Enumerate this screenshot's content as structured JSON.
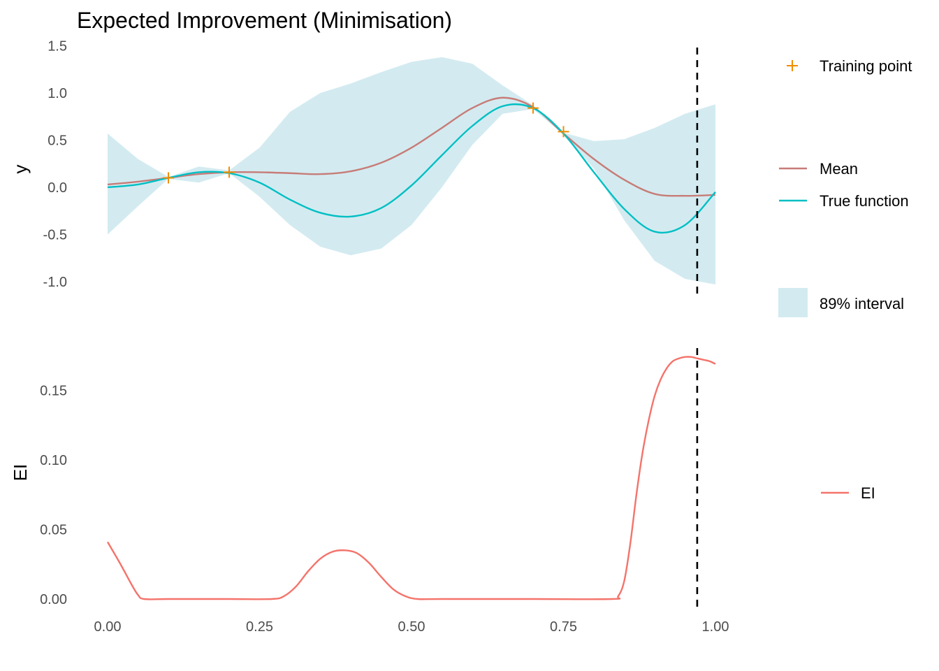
{
  "title": "Expected Improvement (Minimisation)",
  "colors": {
    "mean": "#c77c78",
    "true_function": "#00bfc4",
    "interval": "#d3ebf0",
    "training": "#f08c00",
    "ei": "#f4736b",
    "vline": "#000000",
    "tick_text": "#4d4d4d"
  },
  "legend": {
    "training": "Training point",
    "mean": "Mean",
    "true_function": "True function",
    "interval": "89% interval",
    "ei": "EI"
  },
  "chart_data": [
    {
      "type": "line",
      "panel": "top",
      "ylabel": "y",
      "xlabel": "",
      "xlim": [
        0,
        1
      ],
      "ylim": [
        -1.1,
        1.5
      ],
      "grid": false,
      "legend_position": "right",
      "x_ticks": [
        "0.00",
        "0.25",
        "0.50",
        "0.75",
        "1.00"
      ],
      "y_ticks": [
        "-1.0",
        "-0.5",
        "0.0",
        "0.5",
        "1.0",
        "1.5"
      ],
      "x_tick_values": [
        0,
        0.25,
        0.5,
        0.75,
        1.0
      ],
      "y_tick_values": [
        -1.0,
        -0.5,
        0.0,
        0.5,
        1.0,
        1.5
      ],
      "vline_x": 0.97,
      "series": [
        {
          "name": "Mean",
          "x": [
            0,
            0.05,
            0.1,
            0.15,
            0.2,
            0.25,
            0.3,
            0.35,
            0.4,
            0.45,
            0.5,
            0.55,
            0.6,
            0.65,
            0.7,
            0.75,
            0.8,
            0.85,
            0.9,
            0.95,
            1.0
          ],
          "y": [
            0.03,
            0.06,
            0.1,
            0.14,
            0.16,
            0.16,
            0.15,
            0.14,
            0.17,
            0.26,
            0.42,
            0.63,
            0.84,
            0.95,
            0.85,
            0.57,
            0.3,
            0.08,
            -0.07,
            -0.09,
            -0.08
          ]
        },
        {
          "name": "True function",
          "x": [
            0,
            0.05,
            0.1,
            0.15,
            0.2,
            0.25,
            0.3,
            0.35,
            0.4,
            0.45,
            0.5,
            0.55,
            0.6,
            0.65,
            0.7,
            0.75,
            0.8,
            0.85,
            0.9,
            0.95,
            1.0
          ],
          "y": [
            0.0,
            0.03,
            0.1,
            0.16,
            0.15,
            0.05,
            -0.13,
            -0.27,
            -0.31,
            -0.22,
            0.02,
            0.34,
            0.65,
            0.86,
            0.84,
            0.57,
            0.16,
            -0.23,
            -0.47,
            -0.4,
            -0.05
          ]
        }
      ],
      "interval": {
        "name": "89% interval",
        "x": [
          0,
          0.05,
          0.1,
          0.15,
          0.2,
          0.25,
          0.3,
          0.35,
          0.4,
          0.45,
          0.5,
          0.55,
          0.6,
          0.65,
          0.7,
          0.75,
          0.8,
          0.85,
          0.9,
          0.95,
          1.0
        ],
        "lower": [
          -0.5,
          -0.2,
          0.09,
          0.05,
          0.15,
          -0.1,
          -0.4,
          -0.63,
          -0.72,
          -0.65,
          -0.4,
          0.0,
          0.45,
          0.78,
          0.83,
          0.56,
          0.2,
          -0.35,
          -0.78,
          -0.97,
          -1.03
        ],
        "upper": [
          0.57,
          0.3,
          0.11,
          0.22,
          0.18,
          0.42,
          0.8,
          1.0,
          1.1,
          1.22,
          1.33,
          1.38,
          1.31,
          1.08,
          0.87,
          0.58,
          0.49,
          0.51,
          0.63,
          0.78,
          0.88
        ]
      },
      "training_points": {
        "name": "Training point",
        "x": [
          0.1,
          0.2,
          0.7,
          0.75
        ],
        "y": [
          0.1,
          0.16,
          0.84,
          0.59
        ]
      }
    },
    {
      "type": "line",
      "panel": "bottom",
      "ylabel": "EI",
      "xlabel": "",
      "xlim": [
        0,
        1
      ],
      "ylim": [
        -0.01,
        0.18
      ],
      "grid": false,
      "legend_position": "right",
      "x_ticks": [
        "0.00",
        "0.25",
        "0.50",
        "0.75",
        "1.00"
      ],
      "y_ticks": [
        "0.00",
        "0.05",
        "0.10",
        "0.15"
      ],
      "x_tick_values": [
        0,
        0.25,
        0.5,
        0.75,
        1.0
      ],
      "y_tick_values": [
        0,
        0.05,
        0.1,
        0.15
      ],
      "vline_x": 0.97,
      "series": [
        {
          "name": "EI",
          "x": [
            0,
            0.02,
            0.04,
            0.05,
            0.06,
            0.1,
            0.2,
            0.27,
            0.29,
            0.31,
            0.33,
            0.35,
            0.37,
            0.39,
            0.41,
            0.43,
            0.45,
            0.47,
            0.49,
            0.51,
            0.55,
            0.7,
            0.83,
            0.84,
            0.85,
            0.86,
            0.87,
            0.88,
            0.89,
            0.9,
            0.91,
            0.92,
            0.93,
            0.94,
            0.95,
            0.96,
            0.97,
            0.98,
            0.99,
            1.0
          ],
          "y": [
            0.041,
            0.026,
            0.01,
            0.003,
            0.0,
            0.0,
            0.0,
            0.0,
            0.002,
            0.009,
            0.02,
            0.029,
            0.034,
            0.035,
            0.033,
            0.026,
            0.016,
            0.007,
            0.002,
            0.0,
            0.0,
            0.0,
            0.0,
            0.002,
            0.013,
            0.04,
            0.075,
            0.105,
            0.128,
            0.146,
            0.158,
            0.166,
            0.171,
            0.173,
            0.174,
            0.174,
            0.173,
            0.172,
            0.171,
            0.169
          ]
        }
      ]
    }
  ]
}
